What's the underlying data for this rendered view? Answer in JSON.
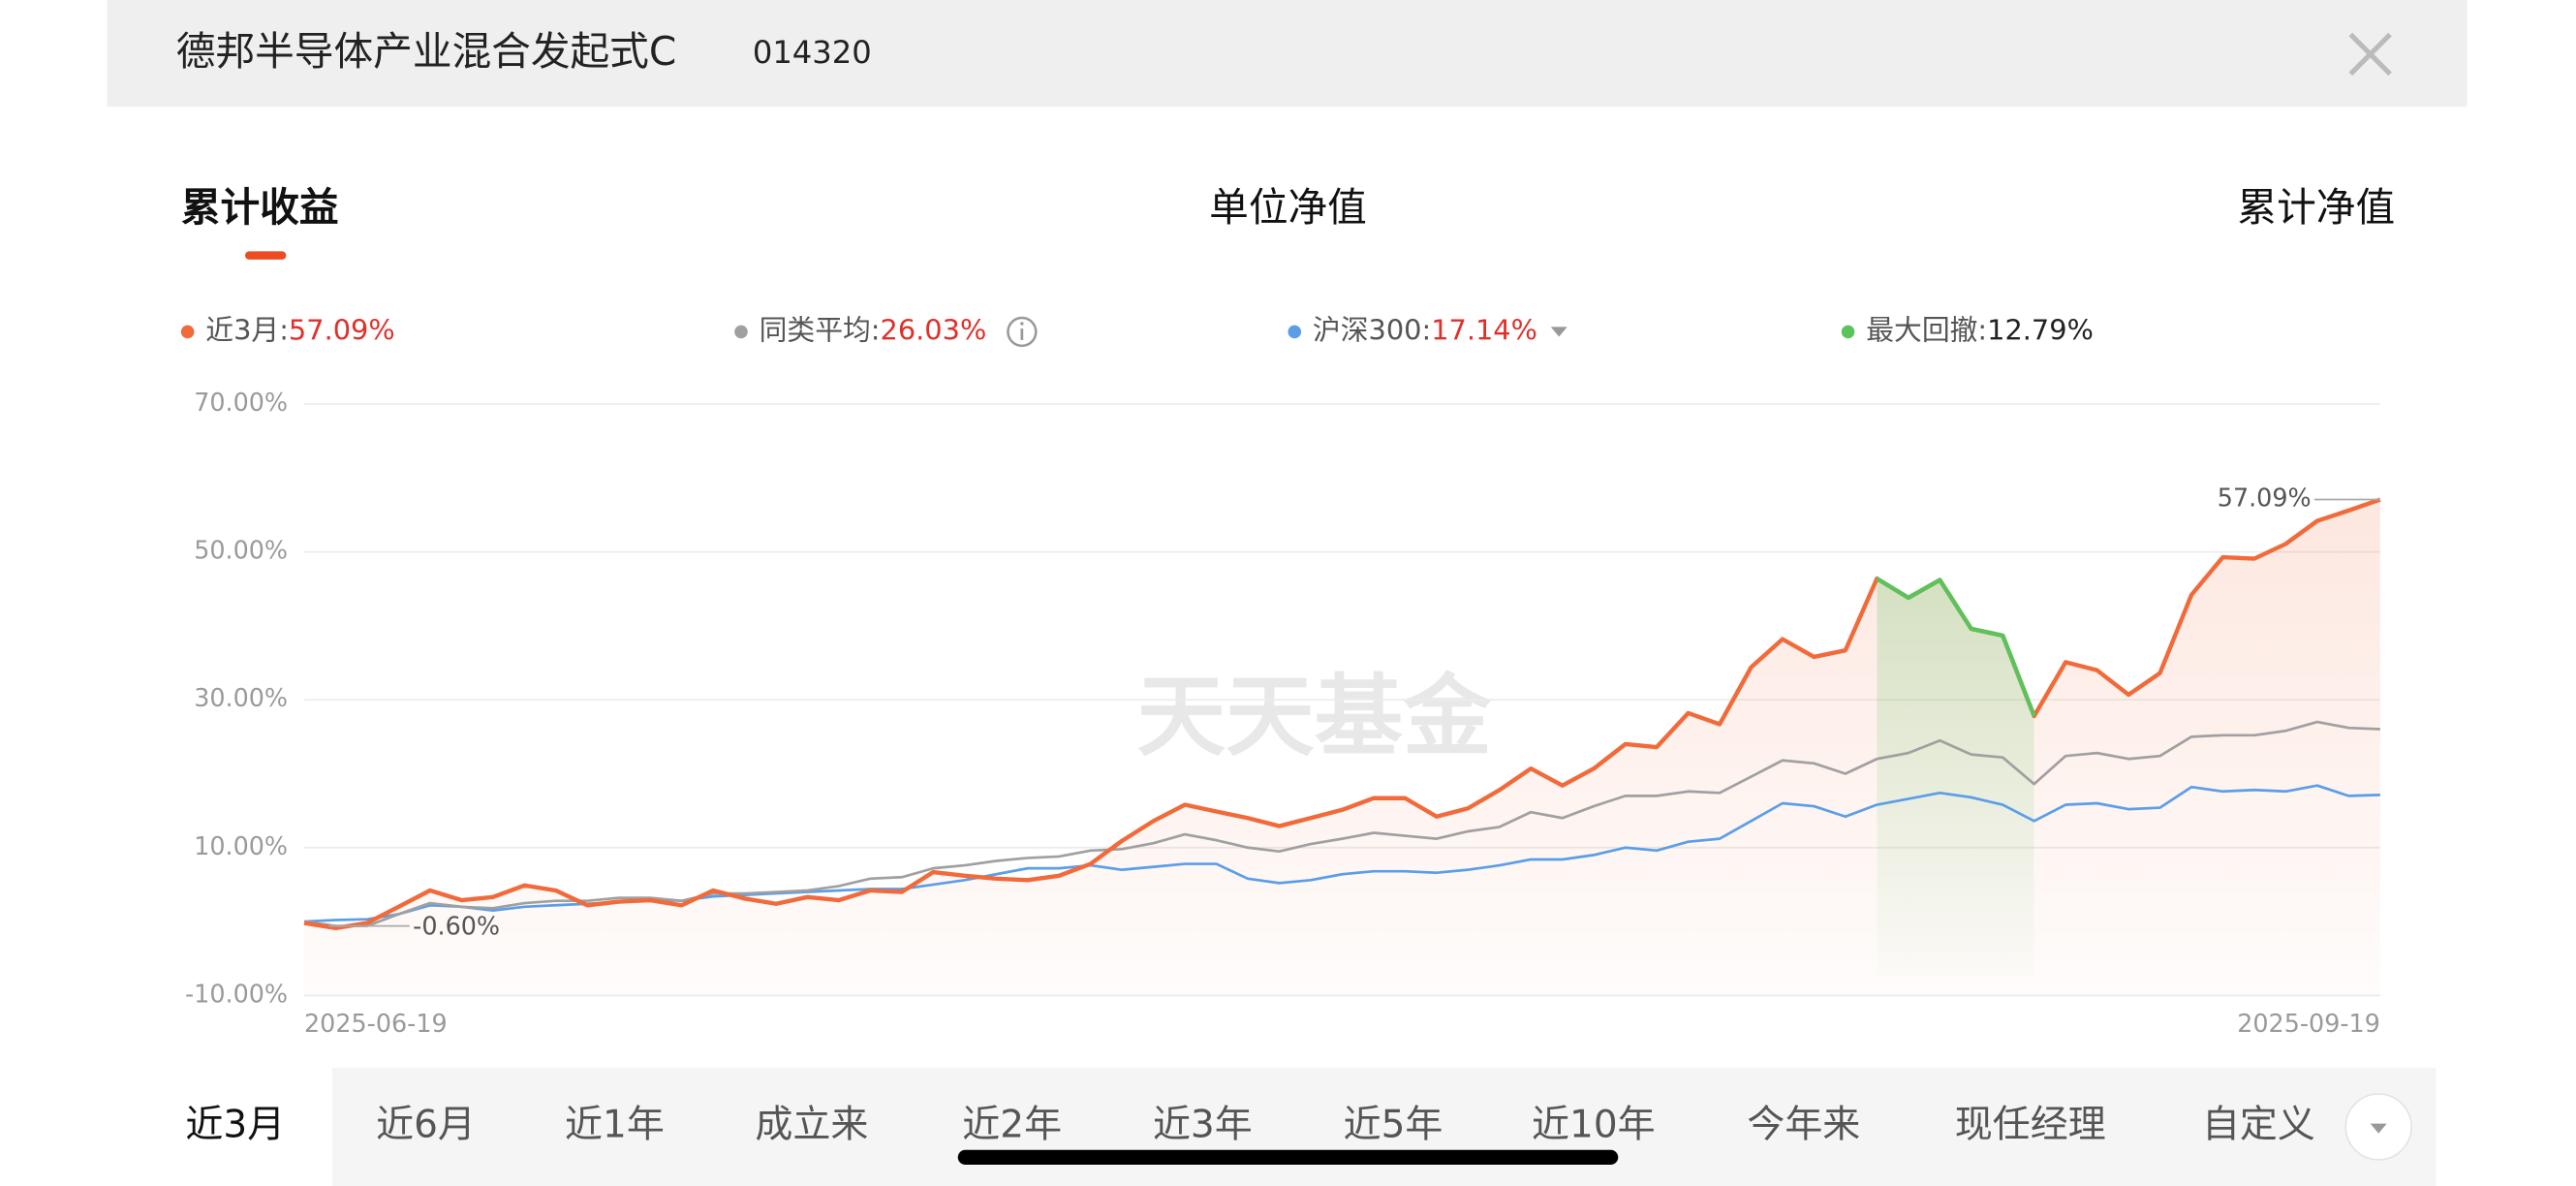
{
  "header": {
    "title": "德邦半导体产业混合发起式C",
    "code": "014320"
  },
  "tabs": {
    "items": [
      "累计收益",
      "单位净值",
      "累计净值"
    ],
    "selected": 0
  },
  "watermark": "天天基金",
  "chart_data": {
    "type": "line",
    "categories": [
      "2025-06-19",
      null,
      null,
      null,
      null,
      null,
      null,
      null,
      null,
      null,
      null,
      null,
      null,
      null,
      null,
      null,
      null,
      null,
      null,
      null,
      null,
      null,
      null,
      null,
      null,
      null,
      null,
      null,
      null,
      null,
      null,
      null,
      null,
      null,
      null,
      null,
      null,
      null,
      null,
      null,
      null,
      null,
      null,
      null,
      null,
      null,
      null,
      null,
      null,
      null,
      null,
      null,
      null,
      null,
      null,
      null,
      null,
      null,
      null,
      null,
      null,
      null,
      null,
      null,
      null,
      null,
      "2025-09-19"
    ],
    "series": [
      {
        "name": "近3月:",
        "summary": "57.09%",
        "color": "#f26a3a",
        "values": [
          -0.2,
          -0.9,
          -0.2,
          2.0,
          4.2,
          2.9,
          3.3,
          4.9,
          4.2,
          2.2,
          2.7,
          2.9,
          2.2,
          4.2,
          3.1,
          2.4,
          3.3,
          2.9,
          4.2,
          4.0,
          6.7,
          6.2,
          5.8,
          5.6,
          6.2,
          7.8,
          10.9,
          13.6,
          15.8,
          14.9,
          14.0,
          12.9,
          14.0,
          15.1,
          16.7,
          16.7,
          14.2,
          15.3,
          17.8,
          20.7,
          18.4,
          20.7,
          24.0,
          23.6,
          28.2,
          26.7,
          34.4,
          38.2,
          35.8,
          36.7,
          46.4,
          43.8,
          46.2,
          39.6,
          38.7,
          27.8,
          35.1,
          34.0,
          30.7,
          33.6,
          44.2,
          49.3,
          49.1,
          51.1,
          54.2,
          55.6,
          57.09
        ]
      },
      {
        "name": "同类平均:",
        "summary": "26.03%",
        "color": "#a0a0a0",
        "values": [
          0,
          -0.6,
          -0.6,
          1.0,
          2.5,
          2.0,
          1.8,
          2.5,
          2.8,
          2.8,
          3.2,
          3.2,
          2.8,
          3.8,
          3.8,
          4.0,
          4.2,
          4.8,
          5.8,
          6.0,
          7.2,
          7.6,
          8.2,
          8.6,
          8.8,
          9.6,
          9.8,
          10.6,
          11.8,
          11.0,
          10.0,
          9.5,
          10.5,
          11.2,
          12.0,
          11.6,
          11.2,
          12.2,
          12.8,
          14.8,
          14.0,
          15.6,
          17.0,
          17.0,
          17.6,
          17.4,
          19.6,
          21.8,
          21.4,
          20.0,
          22.0,
          22.8,
          24.5,
          22.6,
          22.2,
          18.6,
          22.4,
          22.8,
          22.0,
          22.4,
          25.0,
          25.2,
          25.2,
          25.8,
          27.0,
          26.2,
          26.03
        ]
      },
      {
        "name": "沪深300:",
        "summary": "17.14%",
        "color": "#5b9ee8",
        "values": [
          0,
          0.2,
          0.3,
          1.0,
          2.2,
          2.0,
          1.5,
          2.0,
          2.2,
          2.4,
          2.6,
          3.0,
          2.8,
          3.4,
          3.6,
          3.8,
          4.0,
          4.2,
          4.4,
          4.4,
          5.0,
          5.6,
          6.4,
          7.2,
          7.2,
          7.6,
          7.0,
          7.4,
          7.8,
          7.8,
          5.8,
          5.2,
          5.6,
          6.4,
          6.8,
          6.8,
          6.6,
          7.0,
          7.6,
          8.4,
          8.4,
          9.0,
          10.0,
          9.6,
          10.8,
          11.2,
          13.6,
          16.0,
          15.6,
          14.2,
          15.8,
          16.6,
          17.4,
          16.8,
          15.8,
          13.6,
          15.8,
          16.0,
          15.2,
          15.4,
          18.2,
          17.6,
          17.8,
          17.6,
          18.4,
          17.0,
          17.14
        ]
      }
    ],
    "drawdown": {
      "name": "最大回撤:",
      "summary": "12.79%",
      "color": "#5cc35c",
      "start": 50,
      "end": 55
    },
    "end_label": "57.09%",
    "min_label": "-0.60%",
    "ylim": [
      -10,
      70
    ],
    "yticks": [
      {
        "value": -10,
        "label": "-10.00%"
      },
      {
        "value": 10,
        "label": "10.00%"
      },
      {
        "value": 30,
        "label": "30.00%"
      },
      {
        "value": 50,
        "label": "50.00%"
      },
      {
        "value": 70,
        "label": "70.00%"
      }
    ],
    "grid": true
  },
  "periods": {
    "items": [
      "近3月",
      "近6月",
      "近1年",
      "成立来",
      "近2年",
      "近3年",
      "近5年",
      "近10年",
      "今年来",
      "现任经理",
      "自定义"
    ],
    "selected": 0
  }
}
